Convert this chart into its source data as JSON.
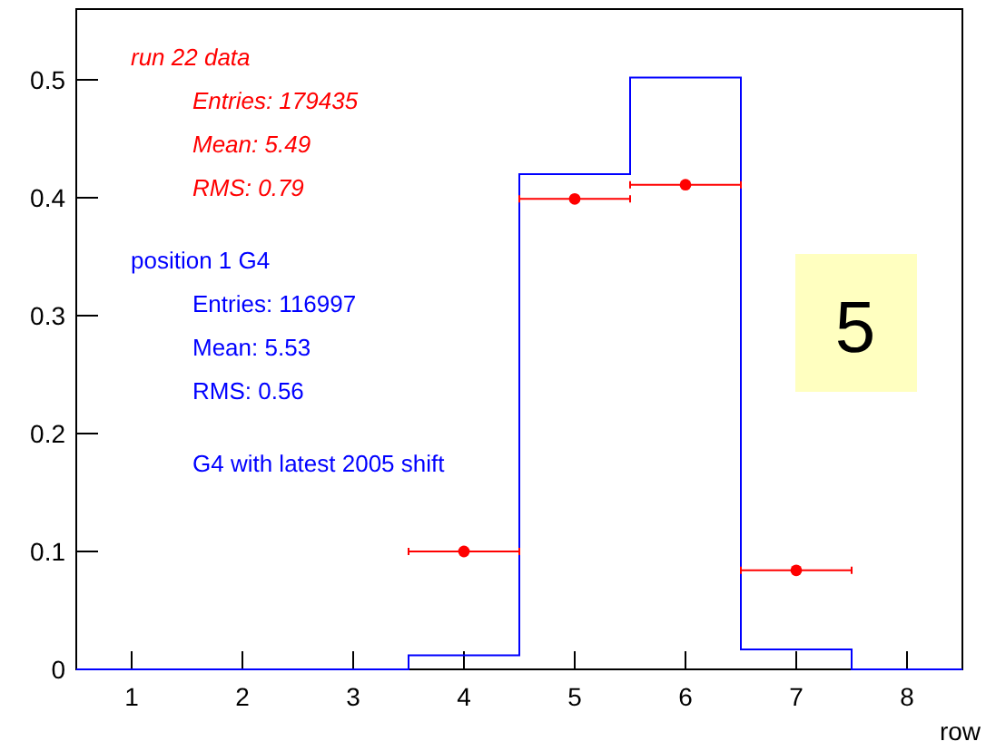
{
  "chart_data": {
    "type": "histogram",
    "xlabel": "row",
    "bins": [
      0.5,
      1.5,
      2.5,
      3.5,
      4.5,
      5.5,
      6.5,
      7.5,
      8.5
    ],
    "series": [
      {
        "name": "position 1 G4",
        "color": "#0000ff",
        "values": [
          0,
          0,
          0,
          0.012,
          0.42,
          0.502,
          0.017,
          0
        ]
      },
      {
        "name": "run 22 data",
        "color": "#ff0000",
        "type": "scatter",
        "x": [
          4,
          5,
          6,
          7
        ],
        "values": [
          0.1,
          0.399,
          0.411,
          0.084
        ],
        "xerrors": [
          0.5,
          0.5,
          0.5,
          0.5
        ]
      }
    ],
    "xlim": [
      0.5,
      8.5
    ],
    "ylim": [
      0,
      0.56
    ],
    "xticks": [
      1,
      2,
      3,
      4,
      5,
      6,
      7,
      8
    ],
    "yticks": [
      0,
      0.1,
      0.2,
      0.3,
      0.4,
      0.5
    ],
    "marker": "circle",
    "legend": "top left",
    "annotations": [
      "Entries: 179435",
      "Mean: 5.49",
      "RMS: 0.79",
      "Entries: 116997",
      "Mean: 5.53",
      "RMS: 0.56",
      "G4 with latest 2005 shift",
      "5"
    ]
  }
}
